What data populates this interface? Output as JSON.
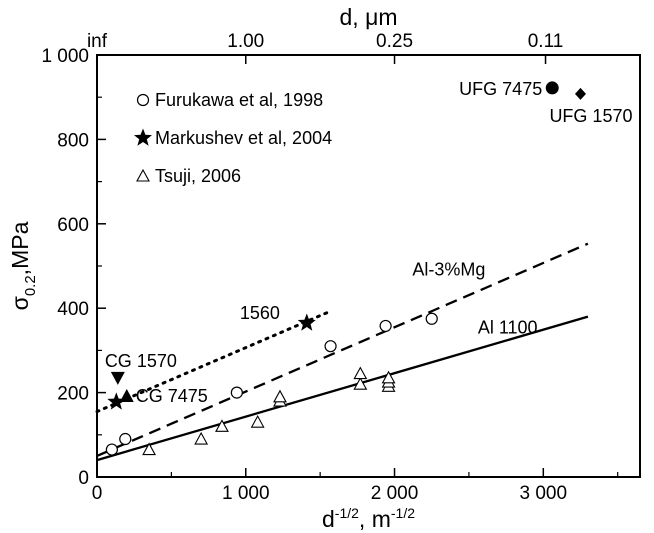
{
  "chart_data": {
    "type": "scatter",
    "title": "",
    "xlabel_base": "d",
    "xlabel_sup": "-1/2",
    "xlabel_sep": ", m",
    "xlabel_unit_sup": "-1/2",
    "ylabel_base": "σ",
    "ylabel_sub": "0.2",
    "ylabel_unit": ",MPa",
    "top_xlabel": "d, μm",
    "xlim": [
      0,
      3650
    ],
    "ylim": [
      0,
      1000
    ],
    "x_ticks": [
      {
        "value": 0,
        "label": "0"
      },
      {
        "value": 1000,
        "label": "1 000"
      },
      {
        "value": 2000,
        "label": "2 000"
      },
      {
        "value": 3000,
        "label": "3 000"
      }
    ],
    "y_ticks": [
      {
        "value": 0,
        "label": "0"
      },
      {
        "value": 200,
        "label": "200"
      },
      {
        "value": 400,
        "label": "400"
      },
      {
        "value": 600,
        "label": "600"
      },
      {
        "value": 800,
        "label": "800"
      },
      {
        "value": 1000,
        "label": "1 000"
      }
    ],
    "top_ticks": [
      {
        "value": 0,
        "label": "inf"
      },
      {
        "value": 1000,
        "label": "1.00"
      },
      {
        "value": 2000,
        "label": "0.25"
      },
      {
        "value": 3015,
        "label": "0.11"
      }
    ],
    "grid": false,
    "legend_position": "top-left",
    "legend": [
      {
        "label": "Furukawa et al, 1998",
        "marker": "circle-open"
      },
      {
        "label": "Markushev et al, 2004",
        "marker": "star"
      },
      {
        "label": "Tsuji, 2006",
        "marker": "triangle-open"
      }
    ],
    "series": [
      {
        "name": "Furukawa et al, 1998",
        "marker": "circle-open",
        "x": [
          100,
          190,
          940,
          1570,
          1940,
          2250
        ],
        "y": [
          65,
          90,
          200,
          310,
          358,
          375
        ]
      },
      {
        "name": "Markushev et al, 2004",
        "marker": "star",
        "x": [
          130,
          1410
        ],
        "y": [
          178,
          365
        ]
      },
      {
        "name": "Tsuji, 2006",
        "marker": "triangle-open",
        "x": [
          350,
          700,
          840,
          1080,
          1230,
          1230,
          1770,
          1770,
          1960,
          1960,
          1960
        ],
        "y": [
          65,
          90,
          120,
          130,
          180,
          190,
          220,
          245,
          215,
          225,
          235
        ]
      }
    ],
    "points": [
      {
        "label": "UFG 7475",
        "marker": "circle-filled",
        "x": 3060,
        "y": 922
      },
      {
        "label": "UFG 1570",
        "marker": "diamond-filled",
        "x": 3250,
        "y": 908
      },
      {
        "label": "CG 1570",
        "marker": "triangle-down-filled",
        "x": 140,
        "y": 235
      },
      {
        "label": "CG 7475",
        "marker": "triangle-up-filled",
        "x": 200,
        "y": 192
      }
    ],
    "lines": [
      {
        "label": "Al 1100",
        "style": "solid",
        "x": [
          0,
          3300
        ],
        "y": [
          40,
          380
        ]
      },
      {
        "label": "Al-3%Mg",
        "style": "dashed",
        "x": [
          0,
          3300
        ],
        "y": [
          50,
          553
        ]
      },
      {
        "label": "1560",
        "style": "dotted",
        "x": [
          0,
          1550
        ],
        "y": [
          155,
          390
        ]
      }
    ]
  }
}
